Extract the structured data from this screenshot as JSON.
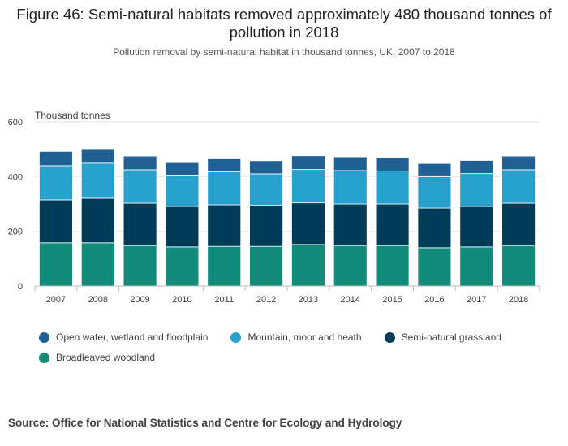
{
  "title": "Figure 46: Semi-natural habitats removed approximately 480 thousand tonnes of pollution in 2018",
  "subtitle": "Pollution removal by semi-natural habitat in thousand tonnes, UK, 2007 to 2018",
  "source": "Source: Office for National Statistics and Centre for Ecology and Hydrology",
  "chart_data": {
    "type": "bar",
    "stacked": true,
    "ylabel": "Thousand tonnes",
    "xlabel": "",
    "ylim": [
      0,
      600
    ],
    "yticks": [
      0,
      200,
      400,
      600
    ],
    "grid": true,
    "legend_position": "bottom",
    "categories": [
      "2007",
      "2008",
      "2009",
      "2010",
      "2011",
      "2012",
      "2013",
      "2014",
      "2015",
      "2016",
      "2017",
      "2018"
    ],
    "series": [
      {
        "name": "Broadleaved woodland",
        "color": "#118c7b",
        "values": [
          158,
          158,
          148,
          143,
          145,
          145,
          152,
          148,
          148,
          140,
          143,
          148
        ]
      },
      {
        "name": "Semi-natural grassland",
        "color": "#003c57",
        "values": [
          157,
          163,
          155,
          148,
          152,
          150,
          152,
          152,
          152,
          145,
          148,
          155
        ]
      },
      {
        "name": "Mountain, moor and heath",
        "color": "#27a0cc",
        "values": [
          125,
          128,
          122,
          112,
          120,
          115,
          122,
          122,
          120,
          115,
          120,
          122
        ]
      },
      {
        "name": "Open water, wetland and floodplain",
        "color": "#206095",
        "values": [
          52,
          50,
          50,
          48,
          48,
          48,
          50,
          50,
          50,
          48,
          48,
          50
        ]
      }
    ]
  },
  "legend": [
    {
      "label": "Open water, wetland and floodplain",
      "color": "#206095"
    },
    {
      "label": "Mountain, moor and heath",
      "color": "#27a0cc"
    },
    {
      "label": "Semi-natural grassland",
      "color": "#003c57"
    },
    {
      "label": "Broadleaved woodland",
      "color": "#118c7b"
    }
  ]
}
